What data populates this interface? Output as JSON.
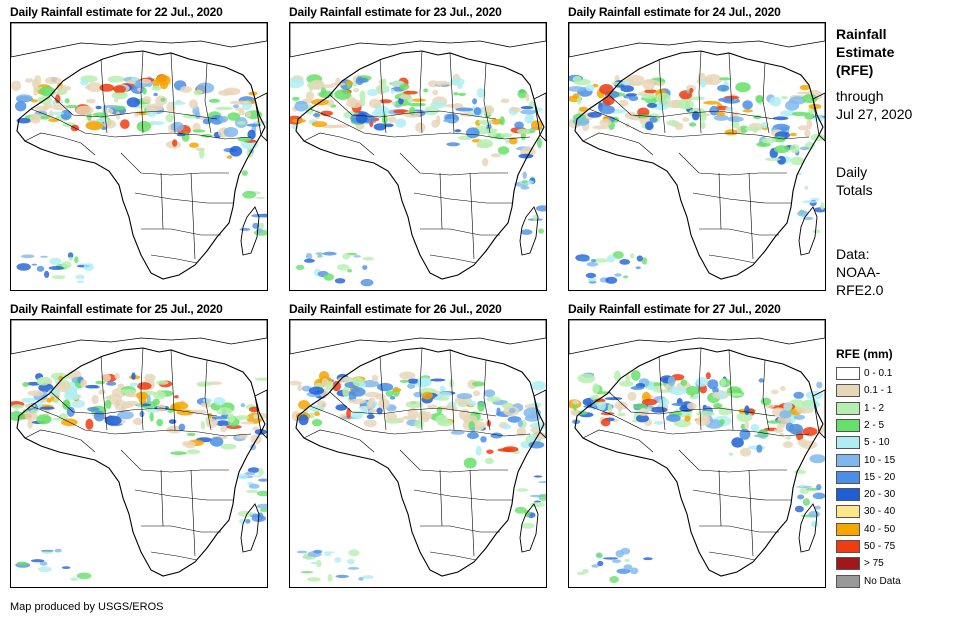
{
  "panels": [
    {
      "title": "Daily Rainfall estimate for 22 Jul., 2020",
      "seed": 3
    },
    {
      "title": "Daily Rainfall estimate for 23 Jul., 2020",
      "seed": 7
    },
    {
      "title": "Daily Rainfall estimate for 24 Jul., 2020",
      "seed": 11
    },
    {
      "title": "Daily Rainfall estimate for 25 Jul., 2020",
      "seed": 19
    },
    {
      "title": "Daily Rainfall estimate for 26 Jul., 2020",
      "seed": 23
    },
    {
      "title": "Daily Rainfall estimate for 27 Jul., 2020",
      "seed": 29
    }
  ],
  "sidebar": {
    "title_line1": "Rainfall",
    "title_line2": "Estimate",
    "title_line3": "(RFE)",
    "through_line1": "through",
    "through_line2": "Jul 27, 2020",
    "totals_line1": "Daily",
    "totals_line2": "Totals",
    "data_line1": "Data:",
    "data_line2": "NOAA-",
    "data_line3": "RFE2.0"
  },
  "legend": {
    "title": "RFE (mm)",
    "items": [
      {
        "label": "0 - 0.1",
        "color": "#ffffff"
      },
      {
        "label": "0.1 - 1",
        "color": "#e8d6b8"
      },
      {
        "label": "1 - 2",
        "color": "#b6f0b0"
      },
      {
        "label": "2 - 5",
        "color": "#66e06a"
      },
      {
        "label": "5 - 10",
        "color": "#aeeef2"
      },
      {
        "label": "10 - 15",
        "color": "#80b8ee"
      },
      {
        "label": "15 - 20",
        "color": "#4a8ee6"
      },
      {
        "label": "20 - 30",
        "color": "#1e5fd8"
      },
      {
        "label": "30 - 40",
        "color": "#fbe68a"
      },
      {
        "label": "40 - 50",
        "color": "#f6a600"
      },
      {
        "label": "50 - 75",
        "color": "#f03c10"
      },
      {
        "label": "> 75",
        "color": "#a01818"
      },
      {
        "label": "No Data",
        "color": "#999999"
      }
    ]
  },
  "credit": "Map produced by USGS/EROS"
}
